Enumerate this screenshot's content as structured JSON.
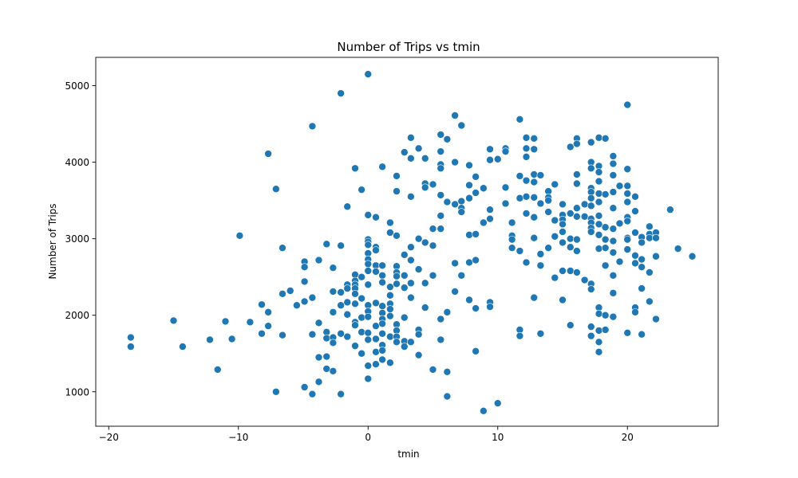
{
  "chart_data": {
    "type": "scatter",
    "title": "Number of Trips vs tmin",
    "xlabel": "tmin",
    "ylabel": "Number of Trips",
    "xlim": [
      -21,
      27
    ],
    "ylim": [
      550,
      5370
    ],
    "xticks": [
      -20,
      -10,
      0,
      10,
      20
    ],
    "xtick_labels": [
      "−20",
      "−10",
      "0",
      "10",
      "20"
    ],
    "yticks": [
      1000,
      2000,
      3000,
      4000,
      5000
    ],
    "ytick_labels": [
      "1000",
      "2000",
      "3000",
      "4000",
      "5000"
    ],
    "grid": false,
    "color": "#1f77b4",
    "points": [
      [
        -18.3,
        1710
      ],
      [
        -18.3,
        1590
      ],
      [
        -15.0,
        1930
      ],
      [
        -14.3,
        1590
      ],
      [
        -12.2,
        1680
      ],
      [
        -11.6,
        1290
      ],
      [
        -11.0,
        1920
      ],
      [
        -10.5,
        1690
      ],
      [
        -9.9,
        3040
      ],
      [
        -9.1,
        1910
      ],
      [
        -8.2,
        2140
      ],
      [
        -8.2,
        1760
      ],
      [
        -7.7,
        4110
      ],
      [
        -7.7,
        2040
      ],
      [
        -7.7,
        1860
      ],
      [
        -7.1,
        3650
      ],
      [
        -7.1,
        1000
      ],
      [
        -6.6,
        2880
      ],
      [
        -6.6,
        2280
      ],
      [
        -6.6,
        1740
      ],
      [
        -6.0,
        2320
      ],
      [
        -5.5,
        2130
      ],
      [
        -4.9,
        2700
      ],
      [
        -4.9,
        2630
      ],
      [
        -4.9,
        2440
      ],
      [
        -4.9,
        2180
      ],
      [
        -4.9,
        1060
      ],
      [
        -4.3,
        4470
      ],
      [
        -4.3,
        2230
      ],
      [
        -4.3,
        1750
      ],
      [
        -4.3,
        970
      ],
      [
        -3.8,
        2720
      ],
      [
        -3.8,
        1900
      ],
      [
        -3.8,
        1450
      ],
      [
        -3.8,
        1130
      ],
      [
        -3.2,
        2930
      ],
      [
        -3.2,
        1780
      ],
      [
        -3.2,
        1700
      ],
      [
        -3.2,
        1460
      ],
      [
        -3.2,
        1300
      ],
      [
        -2.7,
        2620
      ],
      [
        -2.7,
        2310
      ],
      [
        -2.7,
        2040
      ],
      [
        -2.7,
        1710
      ],
      [
        -2.7,
        1640
      ],
      [
        -2.7,
        1270
      ],
      [
        -2.1,
        4900
      ],
      [
        -2.1,
        2910
      ],
      [
        -2.1,
        2300
      ],
      [
        -2.1,
        2130
      ],
      [
        -2.1,
        1760
      ],
      [
        -2.1,
        970
      ],
      [
        -1.6,
        3420
      ],
      [
        -1.6,
        2400
      ],
      [
        -1.6,
        2350
      ],
      [
        -1.6,
        2170
      ],
      [
        -1.6,
        2010
      ],
      [
        -1.6,
        1720
      ],
      [
        -1.0,
        3920
      ],
      [
        -1.0,
        2530
      ],
      [
        -1.0,
        2450
      ],
      [
        -1.0,
        2400
      ],
      [
        -1.0,
        2350
      ],
      [
        -1.0,
        2280
      ],
      [
        -1.0,
        2150
      ],
      [
        -1.0,
        1910
      ],
      [
        -1.0,
        1870
      ],
      [
        -1.0,
        1600
      ],
      [
        -0.5,
        3640
      ],
      [
        -0.5,
        2500
      ],
      [
        -0.5,
        2220
      ],
      [
        -0.5,
        1970
      ],
      [
        -0.5,
        1780
      ],
      [
        -0.5,
        1500
      ],
      [
        0.0,
        5150
      ],
      [
        0.0,
        3310
      ],
      [
        0.0,
        2990
      ],
      [
        0.0,
        2960
      ],
      [
        0.0,
        2920
      ],
      [
        0.0,
        2810
      ],
      [
        0.0,
        2730
      ],
      [
        0.0,
        2670
      ],
      [
        0.0,
        2580
      ],
      [
        0.0,
        2400
      ],
      [
        0.0,
        2130
      ],
      [
        0.0,
        2050
      ],
      [
        0.0,
        1980
      ],
      [
        0.0,
        1770
      ],
      [
        0.0,
        1680
      ],
      [
        0.0,
        1340
      ],
      [
        0.0,
        1170
      ],
      [
        0.6,
        3280
      ],
      [
        0.6,
        2890
      ],
      [
        0.6,
        2850
      ],
      [
        0.6,
        2650
      ],
      [
        0.6,
        2570
      ],
      [
        0.6,
        2160
      ],
      [
        0.6,
        1860
      ],
      [
        0.6,
        1690
      ],
      [
        0.6,
        1520
      ],
      [
        0.6,
        1360
      ],
      [
        1.1,
        3940
      ],
      [
        1.1,
        2650
      ],
      [
        1.1,
        2520
      ],
      [
        1.1,
        2430
      ],
      [
        1.1,
        2120
      ],
      [
        1.1,
        2030
      ],
      [
        1.1,
        1950
      ],
      [
        1.1,
        1890
      ],
      [
        1.1,
        1760
      ],
      [
        1.1,
        1610
      ],
      [
        1.1,
        1540
      ],
      [
        1.1,
        1420
      ],
      [
        1.7,
        3210
      ],
      [
        1.7,
        3080
      ],
      [
        1.7,
        2370
      ],
      [
        1.7,
        2260
      ],
      [
        1.7,
        2150
      ],
      [
        1.7,
        2080
      ],
      [
        1.7,
        1990
      ],
      [
        1.7,
        1720
      ],
      [
        1.7,
        1380
      ],
      [
        2.2,
        3820
      ],
      [
        2.2,
        3620
      ],
      [
        2.2,
        3040
      ],
      [
        2.2,
        2640
      ],
      [
        2.2,
        2560
      ],
      [
        2.2,
        2510
      ],
      [
        2.2,
        2410
      ],
      [
        2.2,
        1880
      ],
      [
        2.2,
        1800
      ],
      [
        2.2,
        1720
      ],
      [
        2.2,
        1650
      ],
      [
        2.8,
        4130
      ],
      [
        2.8,
        2790
      ],
      [
        2.8,
        2520
      ],
      [
        2.8,
        2360
      ],
      [
        2.8,
        1970
      ],
      [
        2.8,
        1660
      ],
      [
        2.8,
        1590
      ],
      [
        3.3,
        4320
      ],
      [
        3.3,
        4050
      ],
      [
        3.3,
        3550
      ],
      [
        3.3,
        2890
      ],
      [
        3.3,
        2720
      ],
      [
        3.3,
        2420
      ],
      [
        3.3,
        2230
      ],
      [
        3.3,
        1650
      ],
      [
        3.9,
        4180
      ],
      [
        3.9,
        3000
      ],
      [
        3.9,
        2600
      ],
      [
        3.9,
        1810
      ],
      [
        3.9,
        1750
      ],
      [
        3.9,
        1480
      ],
      [
        4.4,
        4050
      ],
      [
        4.4,
        3720
      ],
      [
        4.4,
        3670
      ],
      [
        4.4,
        2950
      ],
      [
        4.4,
        2420
      ],
      [
        4.4,
        2100
      ],
      [
        5.0,
        3710
      ],
      [
        5.0,
        3130
      ],
      [
        5.0,
        2910
      ],
      [
        5.0,
        2520
      ],
      [
        5.0,
        1290
      ],
      [
        5.6,
        4360
      ],
      [
        5.6,
        4140
      ],
      [
        5.6,
        3970
      ],
      [
        5.6,
        3920
      ],
      [
        5.6,
        3570
      ],
      [
        5.6,
        3300
      ],
      [
        5.6,
        3130
      ],
      [
        5.6,
        1950
      ],
      [
        5.6,
        1680
      ],
      [
        6.1,
        4300
      ],
      [
        6.1,
        3480
      ],
      [
        6.1,
        2040
      ],
      [
        6.1,
        1260
      ],
      [
        6.1,
        940
      ],
      [
        6.7,
        4610
      ],
      [
        6.7,
        4000
      ],
      [
        6.7,
        3450
      ],
      [
        6.7,
        2680
      ],
      [
        6.7,
        2310
      ],
      [
        7.2,
        4480
      ],
      [
        7.2,
        3490
      ],
      [
        7.2,
        3400
      ],
      [
        7.2,
        3350
      ],
      [
        7.2,
        2520
      ],
      [
        7.8,
        3960
      ],
      [
        7.8,
        3700
      ],
      [
        7.8,
        3530
      ],
      [
        7.8,
        3050
      ],
      [
        7.8,
        2690
      ],
      [
        7.8,
        2200
      ],
      [
        8.3,
        3810
      ],
      [
        8.3,
        3600
      ],
      [
        8.3,
        3060
      ],
      [
        8.3,
        2720
      ],
      [
        8.3,
        2090
      ],
      [
        8.3,
        1530
      ],
      [
        8.9,
        3660
      ],
      [
        8.9,
        3210
      ],
      [
        8.9,
        750
      ],
      [
        9.4,
        4170
      ],
      [
        9.4,
        4030
      ],
      [
        9.4,
        3380
      ],
      [
        9.4,
        3260
      ],
      [
        9.4,
        2170
      ],
      [
        9.4,
        2110
      ],
      [
        10.0,
        4040
      ],
      [
        10.0,
        850
      ],
      [
        10.6,
        4180
      ],
      [
        10.6,
        4140
      ],
      [
        10.6,
        3670
      ],
      [
        10.6,
        3460
      ],
      [
        11.1,
        3210
      ],
      [
        11.1,
        3040
      ],
      [
        11.1,
        2990
      ],
      [
        11.1,
        2880
      ],
      [
        11.7,
        4560
      ],
      [
        11.7,
        3820
      ],
      [
        11.7,
        3530
      ],
      [
        11.7,
        2840
      ],
      [
        11.7,
        1810
      ],
      [
        11.7,
        1730
      ],
      [
        12.2,
        4320
      ],
      [
        12.2,
        4180
      ],
      [
        12.2,
        4070
      ],
      [
        12.2,
        3760
      ],
      [
        12.2,
        3550
      ],
      [
        12.2,
        3330
      ],
      [
        12.2,
        2690
      ],
      [
        12.8,
        4310
      ],
      [
        12.8,
        4170
      ],
      [
        12.8,
        3840
      ],
      [
        12.8,
        3740
      ],
      [
        12.8,
        3540
      ],
      [
        12.8,
        3280
      ],
      [
        12.8,
        3010
      ],
      [
        12.8,
        2230
      ],
      [
        13.3,
        3830
      ],
      [
        13.3,
        3460
      ],
      [
        13.3,
        2800
      ],
      [
        13.3,
        2650
      ],
      [
        13.3,
        1760
      ],
      [
        13.9,
        3620
      ],
      [
        13.9,
        3540
      ],
      [
        13.9,
        3500
      ],
      [
        13.9,
        3350
      ],
      [
        13.9,
        2880
      ],
      [
        14.4,
        3710
      ],
      [
        14.4,
        3240
      ],
      [
        14.4,
        3030
      ],
      [
        14.4,
        2490
      ],
      [
        15.0,
        3450
      ],
      [
        15.0,
        3310
      ],
      [
        15.0,
        3250
      ],
      [
        15.0,
        3190
      ],
      [
        15.0,
        3090
      ],
      [
        15.0,
        2950
      ],
      [
        15.0,
        2580
      ],
      [
        15.0,
        2200
      ],
      [
        15.6,
        4200
      ],
      [
        15.6,
        3330
      ],
      [
        15.6,
        3000
      ],
      [
        15.6,
        2890
      ],
      [
        15.6,
        2580
      ],
      [
        15.6,
        1870
      ],
      [
        16.1,
        4310
      ],
      [
        16.1,
        4240
      ],
      [
        16.1,
        3840
      ],
      [
        16.1,
        3720
      ],
      [
        16.1,
        3400
      ],
      [
        16.1,
        3290
      ],
      [
        16.1,
        2990
      ],
      [
        16.1,
        2840
      ],
      [
        16.1,
        2560
      ],
      [
        16.7,
        3450
      ],
      [
        16.7,
        3290
      ],
      [
        16.7,
        2460
      ],
      [
        17.2,
        4260
      ],
      [
        17.2,
        4000
      ],
      [
        17.2,
        3920
      ],
      [
        17.2,
        3660
      ],
      [
        17.2,
        3610
      ],
      [
        17.2,
        3530
      ],
      [
        17.2,
        3430
      ],
      [
        17.2,
        3260
      ],
      [
        17.2,
        3210
      ],
      [
        17.2,
        3140
      ],
      [
        17.2,
        3090
      ],
      [
        17.2,
        2410
      ],
      [
        17.2,
        2340
      ],
      [
        17.2,
        1850
      ],
      [
        17.2,
        1730
      ],
      [
        17.8,
        4320
      ],
      [
        17.8,
        3950
      ],
      [
        17.8,
        3870
      ],
      [
        17.8,
        3750
      ],
      [
        17.8,
        3590
      ],
      [
        17.8,
        3480
      ],
      [
        17.8,
        3300
      ],
      [
        17.8,
        3190
      ],
      [
        17.8,
        3050
      ],
      [
        17.8,
        2870
      ],
      [
        17.8,
        2100
      ],
      [
        17.8,
        2020
      ],
      [
        17.8,
        1800
      ],
      [
        17.8,
        1650
      ],
      [
        17.8,
        1520
      ],
      [
        18.3,
        4310
      ],
      [
        18.3,
        3580
      ],
      [
        18.3,
        3150
      ],
      [
        18.3,
        2990
      ],
      [
        18.3,
        2880
      ],
      [
        18.3,
        2650
      ],
      [
        18.3,
        2000
      ],
      [
        18.3,
        1810
      ],
      [
        18.9,
        4080
      ],
      [
        18.9,
        3980
      ],
      [
        18.9,
        3830
      ],
      [
        18.9,
        3610
      ],
      [
        18.9,
        3400
      ],
      [
        18.9,
        3130
      ],
      [
        18.9,
        2970
      ],
      [
        18.9,
        2820
      ],
      [
        18.9,
        2520
      ],
      [
        18.9,
        2290
      ],
      [
        18.9,
        1980
      ],
      [
        19.4,
        3690
      ],
      [
        19.4,
        3200
      ],
      [
        19.4,
        2700
      ],
      [
        20.0,
        4750
      ],
      [
        20.0,
        3910
      ],
      [
        20.0,
        3690
      ],
      [
        20.0,
        3590
      ],
      [
        20.0,
        3480
      ],
      [
        20.0,
        3280
      ],
      [
        20.0,
        3230
      ],
      [
        20.0,
        3010
      ],
      [
        20.0,
        2990
      ],
      [
        20.0,
        2860
      ],
      [
        20.0,
        1770
      ],
      [
        20.6,
        3550
      ],
      [
        20.6,
        3360
      ],
      [
        20.6,
        3080
      ],
      [
        20.6,
        2780
      ],
      [
        20.6,
        2680
      ],
      [
        20.6,
        2100
      ],
      [
        20.6,
        2040
      ],
      [
        21.1,
        3020
      ],
      [
        21.1,
        2950
      ],
      [
        21.1,
        2730
      ],
      [
        21.1,
        2630
      ],
      [
        21.1,
        2350
      ],
      [
        21.1,
        1750
      ],
      [
        21.7,
        3160
      ],
      [
        21.7,
        3060
      ],
      [
        21.7,
        3010
      ],
      [
        21.7,
        2560
      ],
      [
        21.7,
        2180
      ],
      [
        22.2,
        3080
      ],
      [
        22.2,
        3010
      ],
      [
        22.2,
        2770
      ],
      [
        22.2,
        1950
      ],
      [
        23.3,
        3380
      ],
      [
        23.9,
        2870
      ],
      [
        25.0,
        2770
      ]
    ]
  }
}
